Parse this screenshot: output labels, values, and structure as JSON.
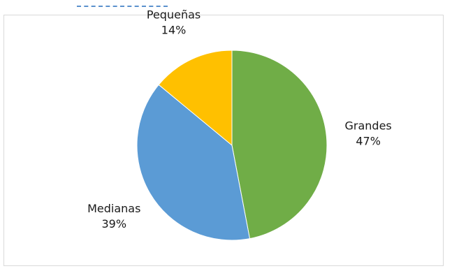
{
  "chart_data": {
    "type": "pie",
    "start_angle_deg": 0,
    "direction": "clockwise",
    "slices": [
      {
        "label": "Grandes",
        "value": 47,
        "value_label": "47%",
        "color": "#70ad47"
      },
      {
        "label": "Medianas",
        "value": 39,
        "value_label": "39%",
        "color": "#5b9bd5"
      },
      {
        "label": "Pequeñas",
        "value": 14,
        "value_label": "14%",
        "color": "#ffc000"
      }
    ]
  }
}
